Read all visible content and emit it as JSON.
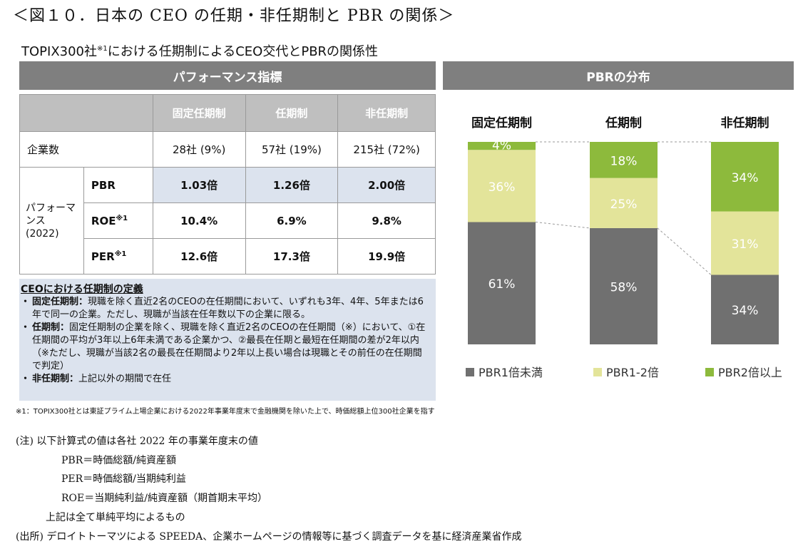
{
  "figure_title": "＜図１０．日本の CEO の任期・非任期制と PBR の関係＞",
  "subtitle_main": "TOPIX300社",
  "subtitle_sup": "※1",
  "subtitle_rest": "における任期制によるCEO交代とPBRの関係性",
  "perf_header": "パフォーマンス指標",
  "pbr_header": "PBRの分布",
  "table": {
    "columns": [
      "固定任期制",
      "任期制",
      "非任期制"
    ],
    "company_count_label": "企業数",
    "company_counts": [
      "28社 (9%)",
      "57社 (19%)",
      "215社 (72%)"
    ],
    "perf_label_line1": "パフォーマ",
    "perf_label_line2": "ンス",
    "perf_label_line3": "(2022)",
    "metrics": [
      {
        "name": "PBR",
        "sup": "",
        "values": [
          "1.03倍",
          "1.26倍",
          "2.00倍"
        ]
      },
      {
        "name": "ROE",
        "sup": "※1",
        "values": [
          "10.4%",
          "6.9%",
          "9.8%"
        ]
      },
      {
        "name": "PER",
        "sup": "※1",
        "values": [
          "12.6倍",
          "17.3倍",
          "19.9倍"
        ]
      }
    ]
  },
  "definition": {
    "title": "CEOにおける任期制の定義",
    "items": [
      {
        "bullet": "・",
        "term": "固定任期制：",
        "text": "現職を除く直近2名のCEOの在任期間において、いずれも3年、4年、5年または6年で同一の企業。ただし、現職が当該在任年数以下の企業に限る。"
      },
      {
        "bullet": "・",
        "term": "任期制：",
        "text": "固定任期制の企業を除く、現職を除く直近2名のCEOの在任期間（※）において、①在任期間の平均が3年以上6年未満である企業かつ、②最長在任期と最短在任期間の差が2年以内（※ただし、現職が当該2名の最長在任期間より2年以上長い場合は現職とその前任の在任期間で判定）"
      },
      {
        "bullet": "・",
        "term": "非任期制：",
        "text": "上記以外の期間で在任"
      }
    ]
  },
  "footnote": "※1：TOPIX300社とは東証プライム上場企業における2022年事業年度末で金融機関を除いた上で、時価総額上位300社企業を指す",
  "notes": [
    "(注) 以下計算式の値は各社 2022 年の事業年度末の値",
    "PBR＝時価総額/純資産額",
    "PER＝時価総額/当期純利益",
    "ROE＝当期純利益/純資産額（期首期末平均）",
    "上記は全て単純平均によるもの",
    "(出所) デロイトトーマツによる SPEEDA、企業ホームページの情報等に基づく調査データを基に経済産業省作成"
  ],
  "colors": {
    "low": "#707070",
    "mid": "#e3e49a",
    "high": "#8dba3c",
    "header_band": "#7f7f7f",
    "highlight": "#dce3ee"
  },
  "chart_data": {
    "type": "bar",
    "stacked": true,
    "normalized": true,
    "title": "PBRの分布",
    "categories": [
      "固定任期制",
      "任期制",
      "非任期制"
    ],
    "series": [
      {
        "name": "PBR1倍未満",
        "values": [
          61,
          58,
          34
        ],
        "labels": [
          "61%",
          "58%",
          "34%"
        ]
      },
      {
        "name": "PBR1-2倍",
        "values": [
          36,
          25,
          31
        ],
        "labels": [
          "36%",
          "25%",
          "31%"
        ]
      },
      {
        "name": "PBR2倍以上",
        "values": [
          4,
          18,
          34
        ],
        "labels": [
          "4%",
          "18%",
          "34%"
        ]
      }
    ],
    "ylim": [
      0,
      100
    ],
    "grid": false,
    "legend_position": "bottom"
  }
}
